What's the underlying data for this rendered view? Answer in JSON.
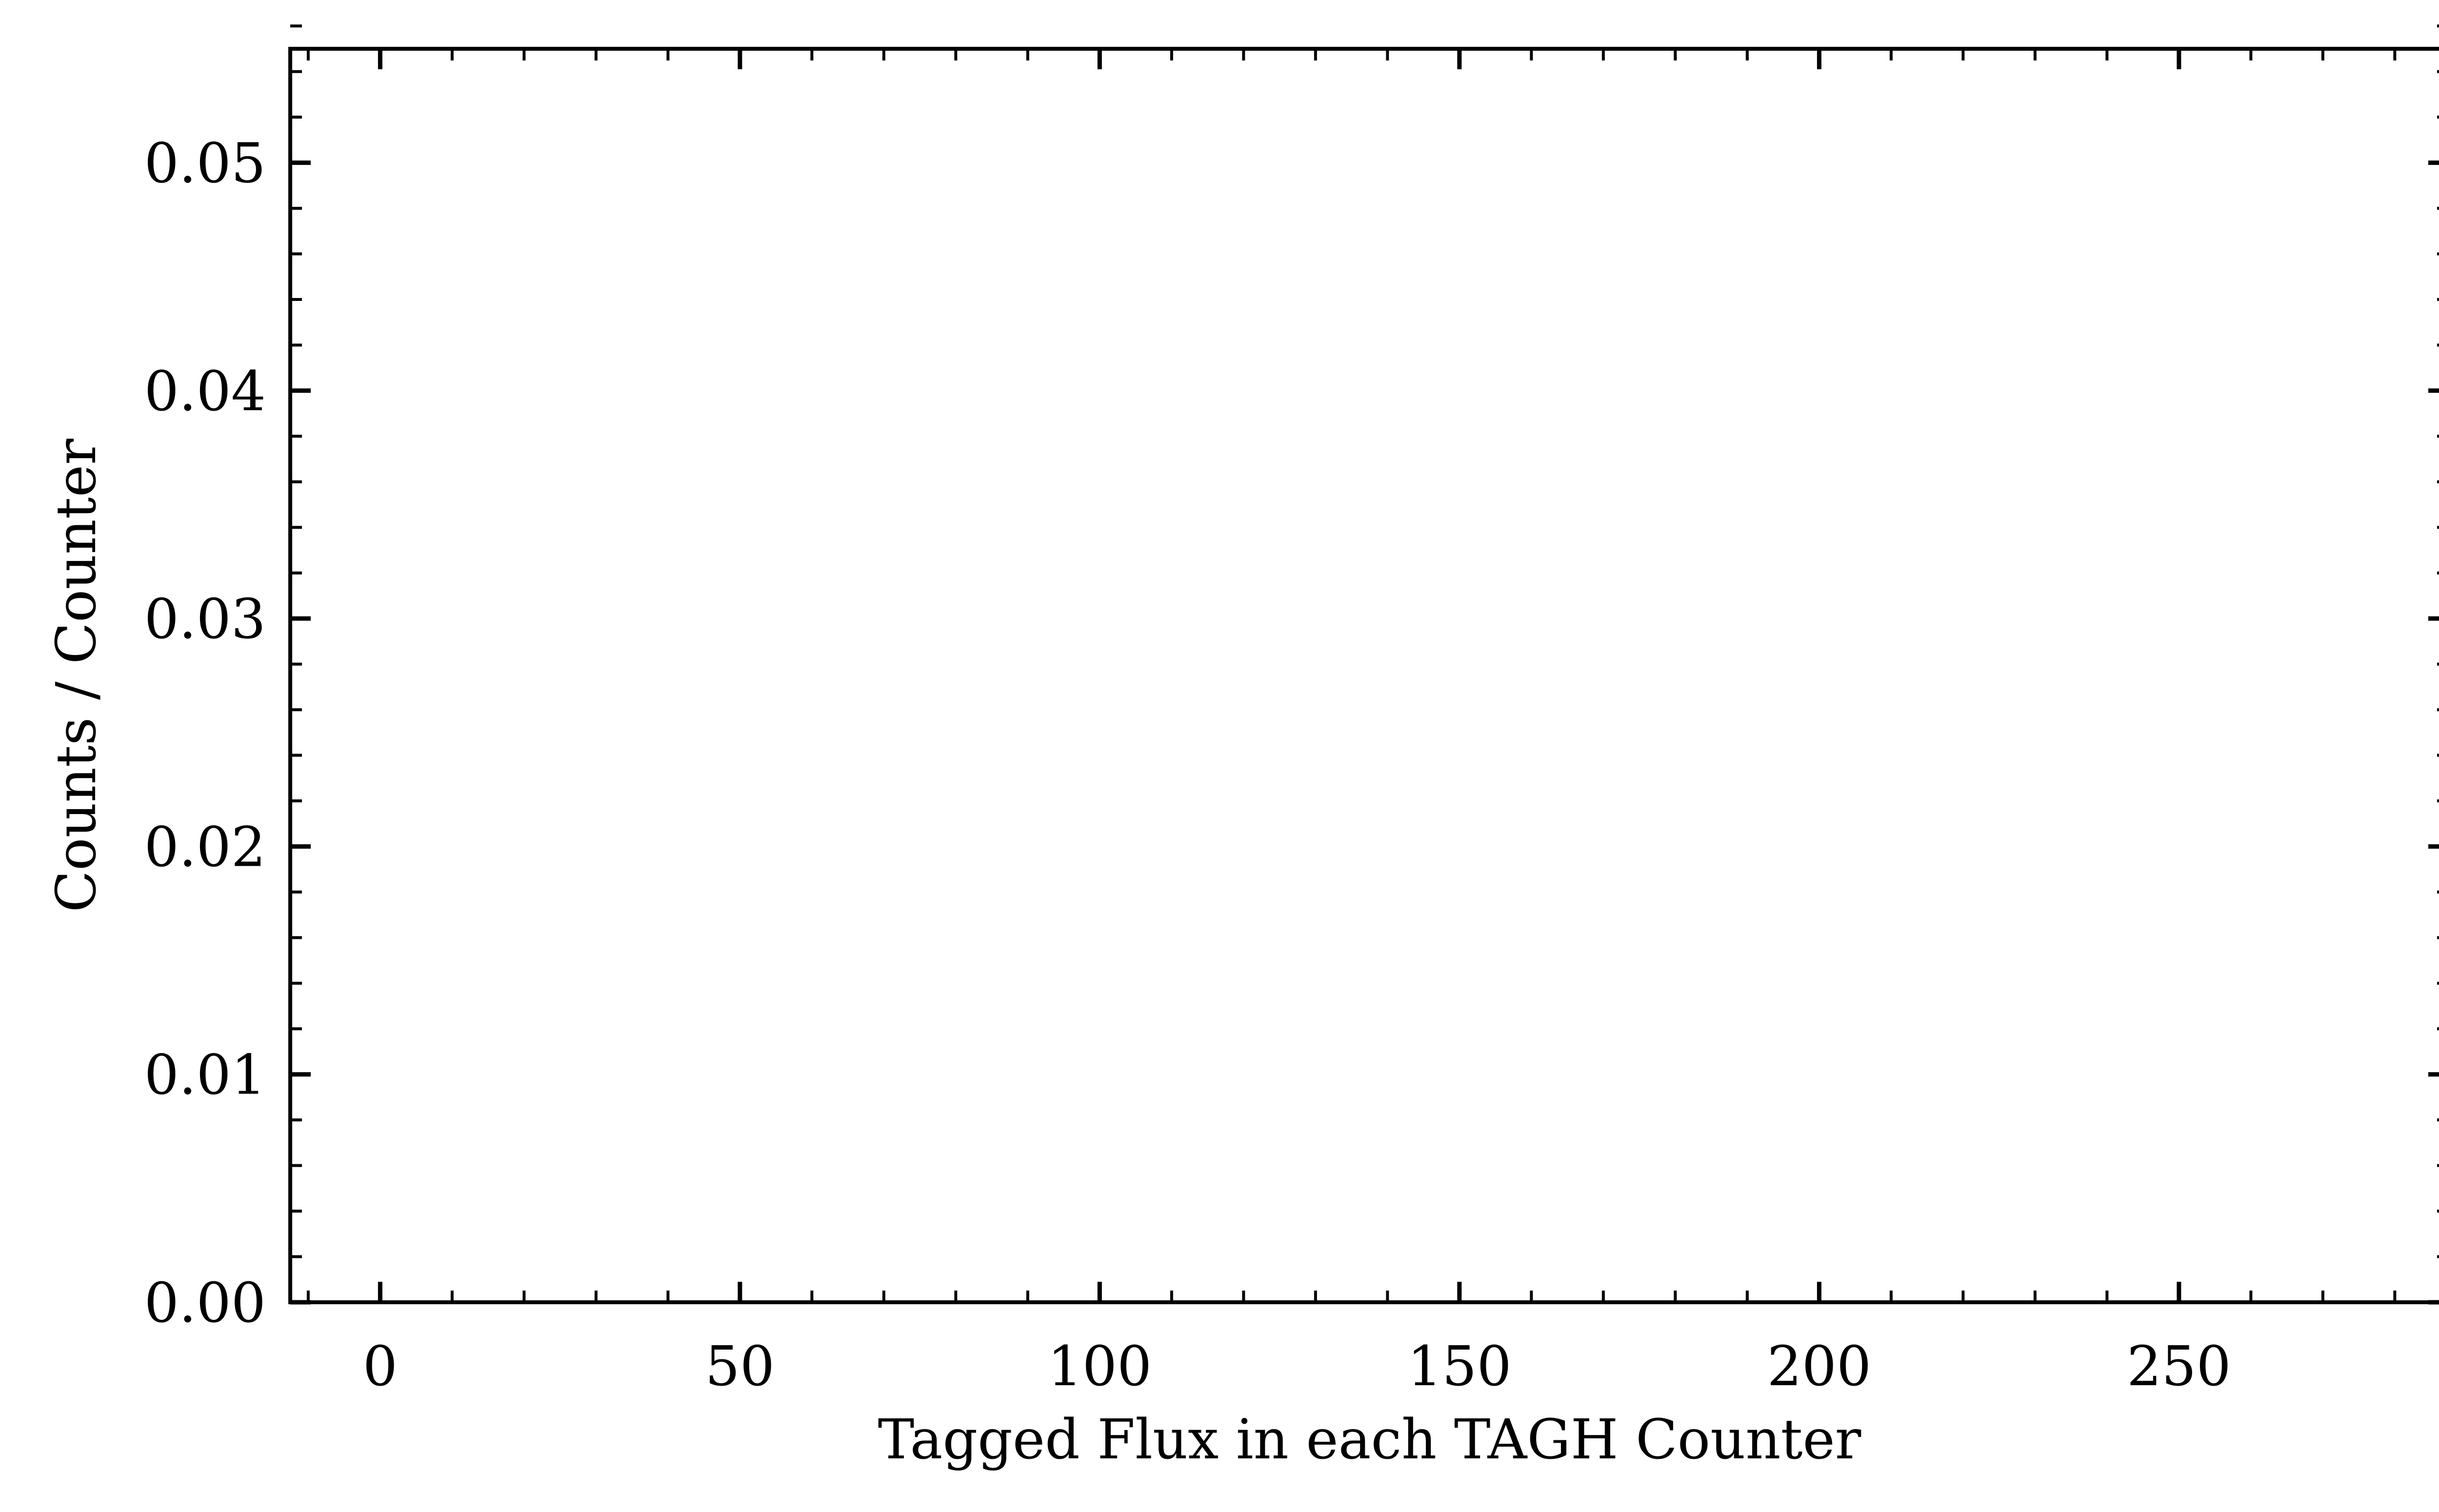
{
  "chart_data": {
    "type": "line",
    "title": "",
    "xlabel": "Tagged Flux in each TAGH Counter",
    "ylabel": "Counts / Counter",
    "xlim": [
      -12.5,
      287.5
    ],
    "ylim": [
      0.0,
      0.055
    ],
    "x_ticks": [
      0,
      50,
      100,
      150,
      200,
      250
    ],
    "x_tick_labels": [
      "0",
      "50",
      "100",
      "150",
      "200",
      "250"
    ],
    "x_minor_step": 10,
    "y_ticks": [
      0.0,
      0.01,
      0.02,
      0.03,
      0.04,
      0.05
    ],
    "y_tick_labels": [
      "0.00",
      "0.01",
      "0.02",
      "0.03",
      "0.04",
      "0.05"
    ],
    "y_minor_step": 0.002,
    "grid": false,
    "series": [
      {
        "x": [
          -10,
          276
        ],
        "y": [
          0.0,
          0.0
        ]
      }
    ],
    "colors": {
      "axis": "#000000",
      "series": "#000000",
      "background": "#ffffff"
    }
  }
}
